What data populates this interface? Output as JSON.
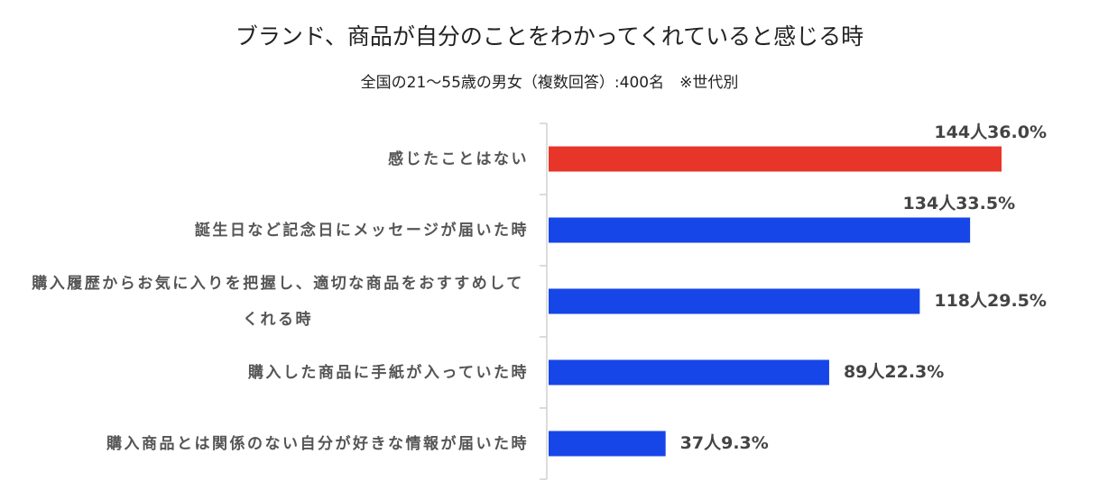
{
  "chart_data": {
    "type": "bar",
    "orientation": "horizontal",
    "title": "ブランド、商品が自分のことをわかってくれていると感じる時",
    "subtitle": "全国の21～55歳の男女（複数回答）:400名　※世代別",
    "categories": [
      "感じたことはない",
      "誕生日など記念日にメッセージが届いた時",
      "購入履歴からお気に入りを把握し、適切な商品をおすすめしてくれる時",
      "購入した商品に手紙が入っていた時",
      "購入商品とは関係のない自分が好きな情報が届いた時"
    ],
    "values": [
      36.0,
      33.5,
      29.5,
      22.3,
      9.3
    ],
    "value_labels": [
      "144人36.0%",
      "134人33.5%",
      "118人29.5%",
      "89人22.3%",
      "37人9.3%"
    ],
    "colors": [
      "#e8352a",
      "#1646e8",
      "#1646e8",
      "#1646e8",
      "#1646e8"
    ]
  }
}
